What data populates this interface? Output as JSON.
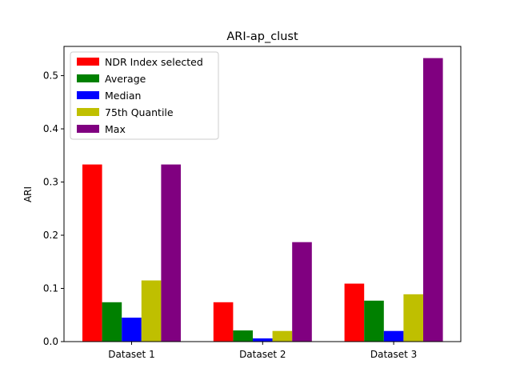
{
  "chart_data": {
    "type": "bar",
    "title": "ARI-ap_clust",
    "xlabel": "",
    "ylabel": "ARI",
    "ylim": [
      0,
      0.555
    ],
    "yticks": [
      0.0,
      0.1,
      0.2,
      0.3,
      0.4,
      0.5
    ],
    "ytick_labels": [
      "0.0",
      "0.1",
      "0.2",
      "0.3",
      "0.4",
      "0.5"
    ],
    "categories": [
      "Dataset 1",
      "Dataset 2",
      "Dataset 3"
    ],
    "legend_position": "top-left",
    "grid": false,
    "series": [
      {
        "name": "NDR Index selected",
        "color": "#ff0000",
        "values": [
          0.333,
          0.074,
          0.109
        ]
      },
      {
        "name": "Average",
        "color": "#008000",
        "values": [
          0.074,
          0.021,
          0.077
        ]
      },
      {
        "name": "Median",
        "color": "#0000ff",
        "values": [
          0.045,
          0.006,
          0.02
        ]
      },
      {
        "name": "75th Quantile",
        "color": "#bfbf00",
        "values": [
          0.115,
          0.02,
          0.089
        ]
      },
      {
        "name": "Max",
        "color": "#800080",
        "values": [
          0.333,
          0.187,
          0.533
        ]
      }
    ]
  }
}
